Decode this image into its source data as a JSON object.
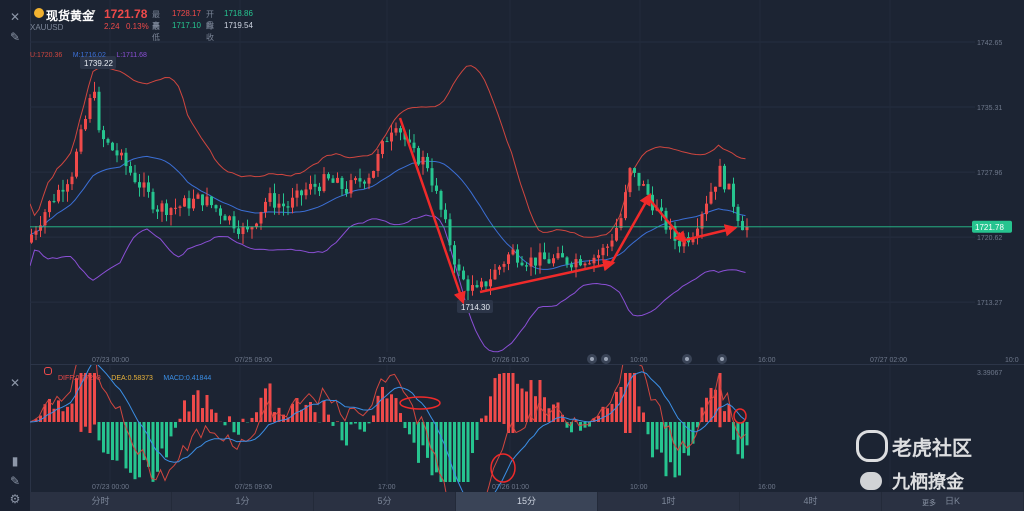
{
  "instrument": {
    "name": "现货黄金",
    "symbol": "XAUUSD",
    "price": "1721.78",
    "change": "2.24",
    "change_pct": "0.13%",
    "high_label": "最高",
    "high_value": "1728.17",
    "open_label": "开盘",
    "open_value": "1718.86",
    "low_label": "最低",
    "low_value": "1717.10",
    "prev_close_label": "昨收",
    "prev_close_value": "1719.54"
  },
  "bollinger": {
    "upper": "U:1720.36",
    "middle": "M:1716.02",
    "lower": "L:1711.68"
  },
  "macd_legend": {
    "diff": "DIFF:0.77298",
    "dea": "DEA:0.58373",
    "macd": "MACD:0.41844"
  },
  "price_axis": [
    "1742.65",
    "1735.31",
    "1727.96",
    "1720.62",
    "1713.27"
  ],
  "macd_axis_top": "3.39067",
  "current_price_tag": "1721.78",
  "annotations": {
    "high_marker": "1739.22",
    "low_marker": "1714.30"
  },
  "time_axis": [
    "07/23 00:00",
    "07/25 09:00",
    "17:00",
    "07/26 01:00",
    "10:00",
    "16:00",
    "07/27 02:00",
    "10:0"
  ],
  "sub_time_axis": [
    "07/23 00:00",
    "07/25 09:00",
    "17:00",
    "07/26 01:00",
    "10:00",
    "16:00"
  ],
  "periods": [
    "分时",
    "1分",
    "5分",
    "15分",
    "1时",
    "4时",
    "日K"
  ],
  "active_period": "15分",
  "more_label": "更多",
  "watermark": {
    "community": "老虎社区",
    "author": "九栖撩金"
  },
  "colors": {
    "up": "#ef4a4a",
    "down": "#26c48f",
    "upper_band": "#d0463f",
    "middle_band": "#3b6fd6",
    "lower_band": "#8b4fd6",
    "bg": "#1c2433"
  },
  "icons": {
    "close": "close-icon",
    "draw": "pencil-icon",
    "gold": "gold-coin-icon",
    "dropdown": "caret-down-icon"
  },
  "chart_data": {
    "type": "candlestick",
    "ylim": [
      1709,
      1744
    ],
    "current_price": 1721.78,
    "macd_ylim": [
      -3.39067,
      3.39067
    ]
  }
}
